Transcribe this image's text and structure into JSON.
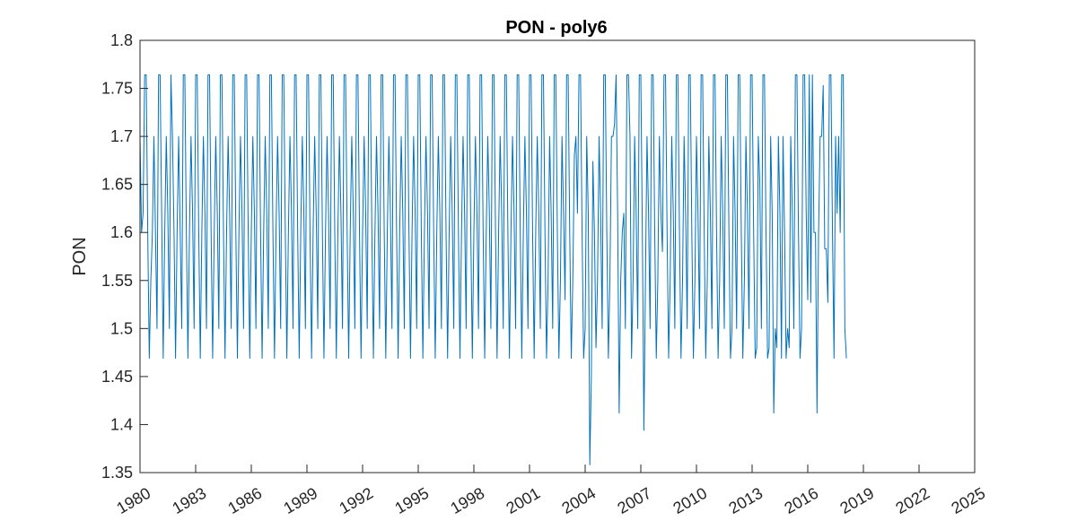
{
  "chart_data": {
    "type": "line",
    "title": "PON - poly6",
    "xlabel": "",
    "ylabel": "PON",
    "xlim": [
      1980,
      2025
    ],
    "ylim": [
      1.35,
      1.8
    ],
    "x_ticks": [
      "1980",
      "1983",
      "1986",
      "1989",
      "1992",
      "1995",
      "1998",
      "2001",
      "2004",
      "2007",
      "2010",
      "2013",
      "2016",
      "2019",
      "2022",
      "2025"
    ],
    "y_ticks": [
      "1.35",
      "1.4",
      "1.45",
      "1.5",
      "1.55",
      "1.6",
      "1.65",
      "1.7",
      "1.75",
      "1.8"
    ],
    "grid": false,
    "legend": "none",
    "series": [
      {
        "color": "#0072BD",
        "x_start": 1980.0,
        "x_step": 0.0833333,
        "values": [
          1.7,
          1.6,
          1.62,
          1.764,
          1.764,
          1.6,
          1.469,
          1.55,
          1.6,
          1.7,
          1.6,
          1.5,
          1.764,
          1.764,
          1.62,
          1.469,
          1.6,
          1.7,
          1.62,
          1.5,
          1.764,
          1.7,
          1.6,
          1.469,
          1.6,
          1.7,
          1.6,
          1.5,
          1.764,
          1.764,
          1.6,
          1.469,
          1.6,
          1.7,
          1.62,
          1.5,
          1.764,
          1.764,
          1.6,
          1.469,
          1.6,
          1.7,
          1.62,
          1.5,
          1.764,
          1.764,
          1.6,
          1.469,
          1.6,
          1.7,
          1.62,
          1.5,
          1.764,
          1.764,
          1.6,
          1.469,
          1.6,
          1.7,
          1.62,
          1.5,
          1.764,
          1.764,
          1.6,
          1.469,
          1.6,
          1.7,
          1.62,
          1.5,
          1.764,
          1.764,
          1.6,
          1.469,
          1.6,
          1.7,
          1.62,
          1.5,
          1.764,
          1.764,
          1.6,
          1.469,
          1.6,
          1.7,
          1.62,
          1.5,
          1.764,
          1.764,
          1.6,
          1.469,
          1.6,
          1.7,
          1.62,
          1.5,
          1.764,
          1.764,
          1.6,
          1.469,
          1.6,
          1.7,
          1.62,
          1.5,
          1.764,
          1.764,
          1.6,
          1.469,
          1.6,
          1.7,
          1.62,
          1.5,
          1.764,
          1.764,
          1.6,
          1.469,
          1.6,
          1.7,
          1.62,
          1.5,
          1.764,
          1.764,
          1.6,
          1.469,
          1.6,
          1.7,
          1.62,
          1.5,
          1.764,
          1.764,
          1.6,
          1.469,
          1.6,
          1.7,
          1.62,
          1.5,
          1.764,
          1.764,
          1.6,
          1.469,
          1.6,
          1.7,
          1.62,
          1.5,
          1.764,
          1.764,
          1.6,
          1.469,
          1.6,
          1.7,
          1.62,
          1.5,
          1.764,
          1.764,
          1.6,
          1.469,
          1.6,
          1.7,
          1.62,
          1.5,
          1.764,
          1.764,
          1.6,
          1.469,
          1.6,
          1.7,
          1.62,
          1.5,
          1.764,
          1.764,
          1.6,
          1.469,
          1.6,
          1.7,
          1.62,
          1.5,
          1.764,
          1.764,
          1.6,
          1.469,
          1.6,
          1.7,
          1.62,
          1.5,
          1.764,
          1.764,
          1.6,
          1.469,
          1.6,
          1.7,
          1.62,
          1.5,
          1.764,
          1.764,
          1.6,
          1.469,
          1.6,
          1.7,
          1.62,
          1.5,
          1.764,
          1.764,
          1.6,
          1.469,
          1.6,
          1.7,
          1.62,
          1.5,
          1.764,
          1.764,
          1.6,
          1.469,
          1.6,
          1.7,
          1.62,
          1.5,
          1.764,
          1.764,
          1.6,
          1.469,
          1.6,
          1.7,
          1.62,
          1.5,
          1.764,
          1.764,
          1.6,
          1.469,
          1.6,
          1.7,
          1.62,
          1.5,
          1.764,
          1.764,
          1.6,
          1.469,
          1.6,
          1.7,
          1.62,
          1.5,
          1.764,
          1.764,
          1.6,
          1.469,
          1.6,
          1.7,
          1.62,
          1.5,
          1.764,
          1.764,
          1.6,
          1.469,
          1.6,
          1.7,
          1.62,
          1.5,
          1.764,
          1.764,
          1.6,
          1.469,
          1.6,
          1.7,
          1.62,
          1.5,
          1.764,
          1.764,
          1.6,
          1.469,
          1.55,
          1.7,
          1.62,
          1.5,
          1.764,
          1.764,
          1.6,
          1.469,
          1.55,
          1.7,
          1.62,
          1.53,
          1.764,
          1.764,
          1.6,
          1.469,
          1.55,
          1.68,
          1.7,
          1.62,
          1.764,
          1.764,
          1.6,
          1.469,
          1.5,
          1.7,
          1.62,
          1.358,
          1.45,
          1.674,
          1.6,
          1.48,
          1.55,
          1.7,
          1.62,
          1.5,
          1.764,
          1.764,
          1.6,
          1.469,
          1.55,
          1.7,
          1.7,
          1.713,
          1.764,
          1.62,
          1.412,
          1.55,
          1.6,
          1.62,
          1.5,
          1.764,
          1.764,
          1.7,
          1.469,
          1.55,
          1.7,
          1.62,
          1.5,
          1.764,
          1.764,
          1.6,
          1.394,
          1.55,
          1.7,
          1.62,
          1.5,
          1.764,
          1.764,
          1.6,
          1.469,
          1.55,
          1.7,
          1.62,
          1.58,
          1.764,
          1.764,
          1.6,
          1.469,
          1.55,
          1.7,
          1.62,
          1.5,
          1.764,
          1.764,
          1.6,
          1.469,
          1.55,
          1.7,
          1.62,
          1.5,
          1.764,
          1.764,
          1.6,
          1.469,
          1.55,
          1.7,
          1.62,
          1.5,
          1.764,
          1.764,
          1.6,
          1.469,
          1.55,
          1.7,
          1.62,
          1.5,
          1.764,
          1.764,
          1.6,
          1.469,
          1.55,
          1.7,
          1.62,
          1.5,
          1.764,
          1.764,
          1.6,
          1.469,
          1.5,
          1.7,
          1.62,
          1.5,
          1.764,
          1.764,
          1.6,
          1.469,
          1.55,
          1.7,
          1.62,
          1.5,
          1.764,
          1.764,
          1.6,
          1.469,
          1.48,
          1.7,
          1.65,
          1.5,
          1.764,
          1.764,
          1.6,
          1.469,
          1.48,
          1.7,
          1.62,
          1.412,
          1.5,
          1.48,
          1.7,
          1.62,
          1.469,
          1.7,
          1.6,
          1.469,
          1.5,
          1.48,
          1.7,
          1.62,
          1.5,
          1.764,
          1.764,
          1.6,
          1.469,
          1.5,
          1.764,
          1.764,
          1.62,
          1.53,
          1.764,
          1.527,
          1.764,
          1.6,
          1.6,
          1.412,
          1.6,
          1.7,
          1.7,
          1.753,
          1.583,
          1.583,
          1.527,
          1.764,
          1.764,
          1.6,
          1.469,
          1.7,
          1.62,
          1.7,
          1.6,
          1.764,
          1.764,
          1.5,
          1.469
        ]
      }
    ]
  }
}
